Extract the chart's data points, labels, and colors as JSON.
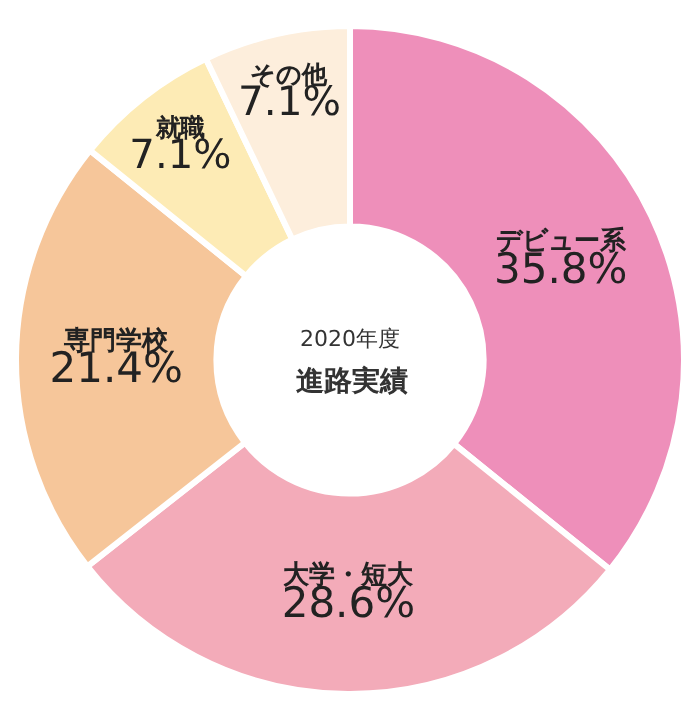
{
  "chart_data": {
    "type": "donut",
    "title": "進路実績",
    "subtitle": "2020年度",
    "categories": [
      "デビュー系",
      "大学・短大",
      "専門学校",
      "就職",
      "その他"
    ],
    "values": [
      35.8,
      28.6,
      21.4,
      7.1,
      7.1
    ],
    "value_labels": [
      "35.8%",
      "28.6%",
      "21.4%",
      "7.1%",
      "7.1%"
    ],
    "colors": [
      "#ee8fba",
      "#f3abb9",
      "#f6c69a",
      "#fdebb5",
      "#fdeedc"
    ],
    "legend": false
  }
}
